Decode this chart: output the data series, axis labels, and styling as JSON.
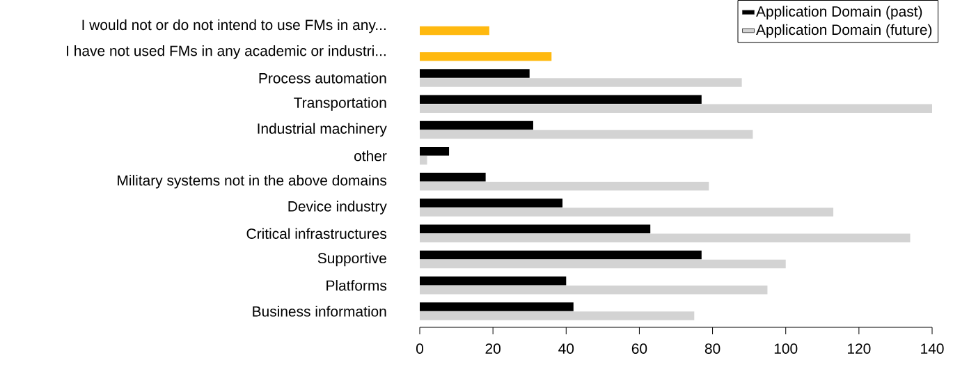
{
  "chart_data": {
    "type": "bar",
    "orientation": "horizontal",
    "categories": [
      "I would not or do not intend  to use FMs in any...",
      "I have not used FMs in any academic or industri...",
      "Process automation",
      "Transportation",
      "Industrial machinery",
      "other",
      "Military systems not in the above domains",
      "Device industry",
      "Critical infrastructures",
      "Supportive",
      "Platforms",
      "Business information"
    ],
    "series": [
      {
        "name": "Application Domain (past)",
        "color": "#000000",
        "values": [
          null,
          null,
          30,
          77,
          31,
          8,
          18,
          39,
          63,
          77,
          40,
          42
        ]
      },
      {
        "name": "Application Domain (future)",
        "color": "#d3d3d3",
        "values": [
          null,
          null,
          88,
          140,
          91,
          2,
          79,
          113,
          134,
          100,
          95,
          75
        ]
      },
      {
        "color": "#ffb90f",
        "values": [
          19,
          36,
          null,
          null,
          null,
          null,
          null,
          null,
          null,
          null,
          null,
          null
        ]
      }
    ],
    "xlim": [
      0,
      140
    ],
    "xticks": [
      0,
      20,
      40,
      60,
      80,
      100,
      120,
      140
    ],
    "legend": "top right"
  }
}
